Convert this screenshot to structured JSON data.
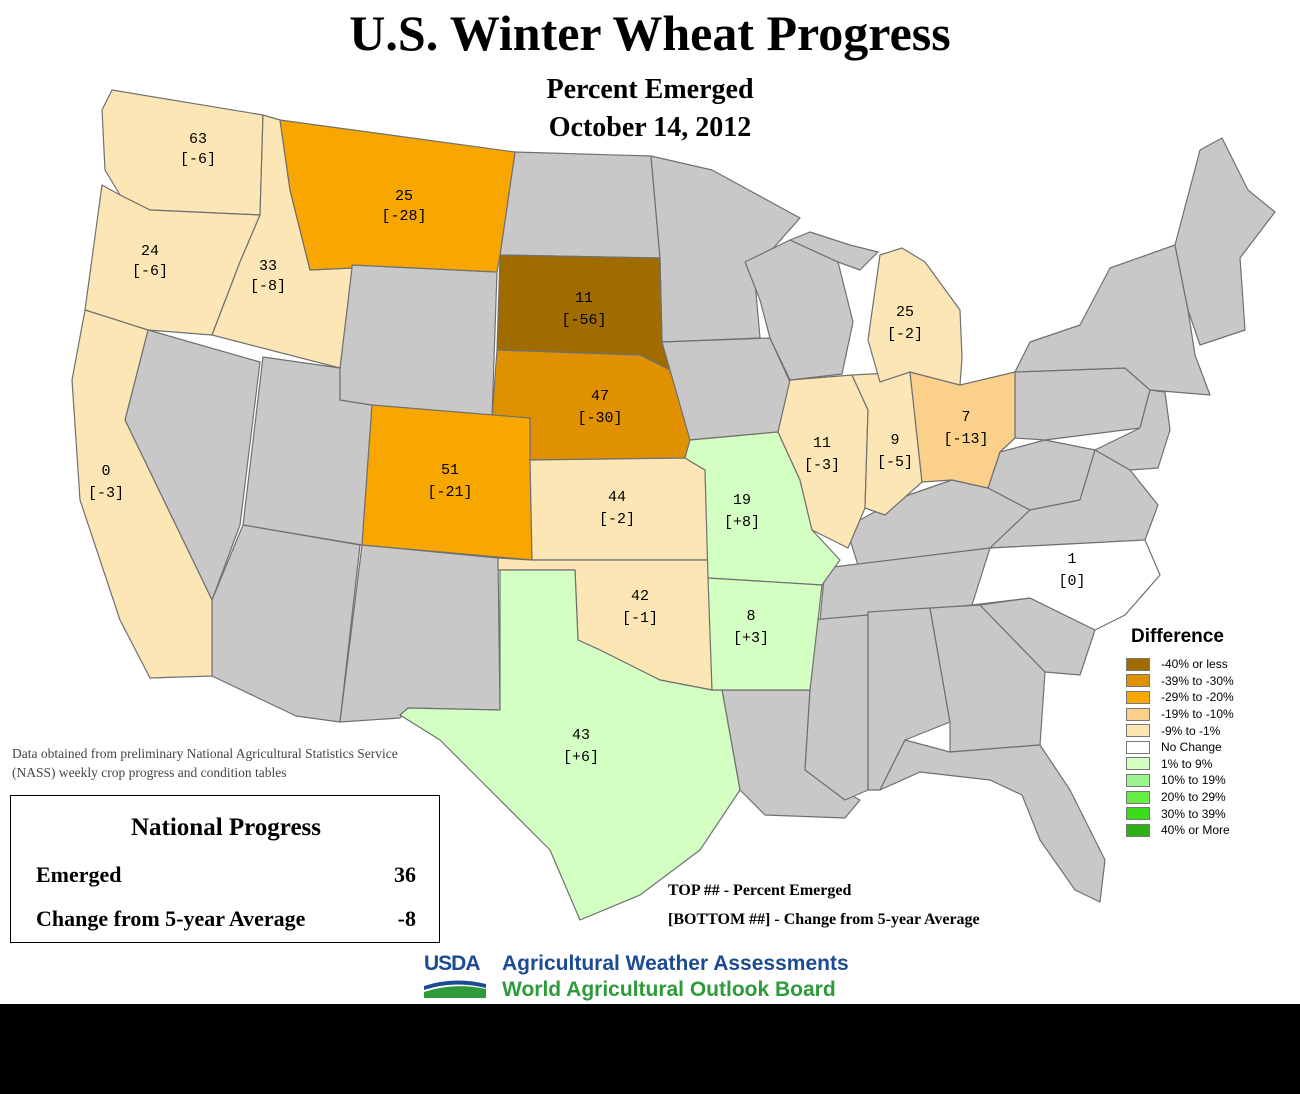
{
  "title": "U.S. Winter Wheat Progress",
  "subtitle": "Percent Emerged",
  "date": "October 14, 2012",
  "colors": {
    "no_data": "#c8c8c8",
    "outline": "#707070",
    "lt_-40": "#a06c00",
    "-39_-30": "#e09100",
    "-29_-20": "#f8a600",
    "-19_-10": "#fbd08a",
    "-9_-1": "#fde6b5",
    "no_change": "#ffffff",
    "1_9": "#d3ffc2",
    "10_19": "#9cf58c",
    "20_29": "#66ee44",
    "30_39": "#39dd1c",
    "40_plus": "#2cb016"
  },
  "chart_data": {
    "type": "choropleth",
    "metric": "Percent Emerged",
    "change_metric": "Change from 5-year Average",
    "states": [
      {
        "state": "WA",
        "emerged": 63,
        "change": -6
      },
      {
        "state": "OR",
        "emerged": 24,
        "change": -6
      },
      {
        "state": "ID",
        "emerged": 33,
        "change": -8
      },
      {
        "state": "MT",
        "emerged": 25,
        "change": -28
      },
      {
        "state": "CA",
        "emerged": 0,
        "change": -3
      },
      {
        "state": "SD",
        "emerged": 11,
        "change": -56
      },
      {
        "state": "NE",
        "emerged": 47,
        "change": -30
      },
      {
        "state": "CO",
        "emerged": 51,
        "change": -21
      },
      {
        "state": "KS",
        "emerged": 44,
        "change": -2
      },
      {
        "state": "OK",
        "emerged": 42,
        "change": -1
      },
      {
        "state": "TX",
        "emerged": 43,
        "change": 6
      },
      {
        "state": "MO",
        "emerged": 19,
        "change": 8
      },
      {
        "state": "AR",
        "emerged": 8,
        "change": 3
      },
      {
        "state": "IL",
        "emerged": 11,
        "change": -3
      },
      {
        "state": "IN",
        "emerged": 9,
        "change": -5
      },
      {
        "state": "OH",
        "emerged": 7,
        "change": -13
      },
      {
        "state": "MI",
        "emerged": 25,
        "change": -2
      },
      {
        "state": "NC",
        "emerged": 1,
        "change": 0
      }
    ]
  },
  "state_labels": [
    {
      "id": "WA",
      "top": "63",
      "bottom": "[-6]"
    },
    {
      "id": "OR",
      "top": "24",
      "bottom": "[-6]"
    },
    {
      "id": "ID",
      "top": "33",
      "bottom": "[-8]"
    },
    {
      "id": "MT",
      "top": "25",
      "bottom": "[-28]"
    },
    {
      "id": "CA",
      "top": "0",
      "bottom": "[-3]"
    },
    {
      "id": "SD",
      "top": "11",
      "bottom": "[-56]"
    },
    {
      "id": "NE",
      "top": "47",
      "bottom": "[-30]"
    },
    {
      "id": "CO",
      "top": "51",
      "bottom": "[-21]"
    },
    {
      "id": "KS",
      "top": "44",
      "bottom": "[-2]"
    },
    {
      "id": "OK",
      "top": "42",
      "bottom": "[-1]"
    },
    {
      "id": "TX",
      "top": "43",
      "bottom": "[+6]"
    },
    {
      "id": "MO",
      "top": "19",
      "bottom": "[+8]"
    },
    {
      "id": "AR",
      "top": "8",
      "bottom": "[+3]"
    },
    {
      "id": "IL",
      "top": "11",
      "bottom": "[-3]"
    },
    {
      "id": "IN",
      "top": "9",
      "bottom": "[-5]"
    },
    {
      "id": "OH",
      "top": "7",
      "bottom": "[-13]"
    },
    {
      "id": "MI",
      "top": "25",
      "bottom": "[-2]"
    },
    {
      "id": "NC",
      "top": "1",
      "bottom": "[0]"
    }
  ],
  "legend": {
    "title": "Difference",
    "items": [
      {
        "label": "-40% or less",
        "color": "#a06c00"
      },
      {
        "label": "-39% to -30%",
        "color": "#e09100"
      },
      {
        "label": "-29% to -20%",
        "color": "#f8a600"
      },
      {
        "label": "-19% to -10%",
        "color": "#fbd08a"
      },
      {
        "label": "-9% to -1%",
        "color": "#fde6b5"
      },
      {
        "label": "No Change",
        "color": "#ffffff"
      },
      {
        "label": "1% to 9%",
        "color": "#d3ffc2"
      },
      {
        "label": "10% to 19%",
        "color": "#9cf58c"
      },
      {
        "label": "20% to 29%",
        "color": "#66ee44"
      },
      {
        "label": "30% to 39%",
        "color": "#39dd1c"
      },
      {
        "label": "40% or More",
        "color": "#2cb016"
      }
    ]
  },
  "source_note": "Data obtained from preliminary National Agricultural Statistics Service (NASS) weekly crop progress and condition tables",
  "national": {
    "title": "National Progress",
    "emerged_label": "Emerged",
    "emerged_value": "36",
    "change_label": "Change from 5-year Average",
    "change_value": "-8"
  },
  "key": {
    "top_line": "TOP ## - Percent Emerged",
    "bottom_line": "[BOTTOM ##] - Change from 5-year Average"
  },
  "usda": {
    "logo_text": "USDA",
    "line1": "Agricultural Weather Assessments",
    "line2": "World Agricultural Outlook Board",
    "line1_color": "#1d4b93",
    "line2_color": "#2e9b3b"
  }
}
